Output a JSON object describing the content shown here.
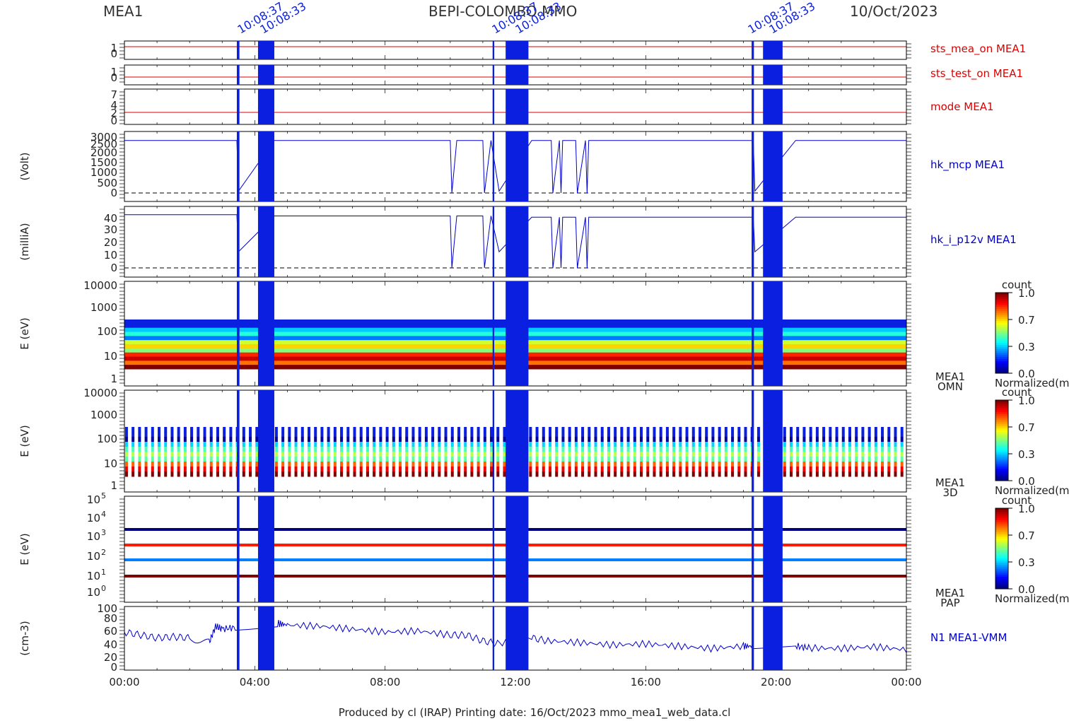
{
  "header": {
    "instrument": "MEA1",
    "mission": "BEPI-COLOMBO MMO",
    "date": "10/Oct/2023"
  },
  "footer": {
    "text": "Produced by cl (IRAP)   Printing date: 16/Oct/2023   mmo_mea1_web_data.cl"
  },
  "colors": {
    "red": "#dd0000",
    "blue": "#0000cc",
    "axis": "#000000"
  },
  "x_axis": {
    "ticks": [
      "00:00",
      "04:00",
      "08:00",
      "12:00",
      "16:00",
      "20:00",
      "00:00"
    ],
    "range_hours": [
      0,
      24
    ]
  },
  "colorbars": [
    {
      "title": "count",
      "ticks": [
        "1.0",
        "0.7",
        "0.3",
        "0.0"
      ],
      "label": "Normalized(m"
    },
    {
      "title": "count",
      "ticks": [
        "1.0",
        "0.7",
        "0.3",
        "0.0"
      ],
      "label": "Normalized(m"
    },
    {
      "title": "count",
      "ticks": [
        "1.0",
        "0.7",
        "0.3",
        "0.0"
      ],
      "label": "Normalized(m"
    }
  ],
  "chart_data": [
    {
      "type": "line",
      "name": "sts_mea_on MEA1",
      "ylabel": "",
      "yticks": [
        "1",
        "0"
      ],
      "ylim": [
        0,
        1
      ],
      "series": [
        {
          "name": "sts_mea_on MEA1",
          "values": [
            [
              0,
              1
            ],
            [
              24,
              1
            ]
          ]
        }
      ]
    },
    {
      "type": "line",
      "name": "sts_test_on MEA1",
      "ylabel": "",
      "yticks": [
        "1",
        "0"
      ],
      "ylim": [
        0,
        1
      ],
      "series": [
        {
          "name": "sts_test_on MEA1",
          "values": [
            [
              0,
              0
            ],
            [
              24,
              0
            ]
          ]
        }
      ]
    },
    {
      "type": "line",
      "name": "mode MEA1",
      "ylabel": "",
      "yticks": [
        "7",
        "4",
        "2",
        "0"
      ],
      "ylim": [
        0,
        7
      ],
      "series": [
        {
          "name": "mode MEA1",
          "values": [
            [
              0,
              2
            ],
            [
              24,
              2
            ]
          ]
        }
      ]
    },
    {
      "type": "line",
      "name": "hk_mcp MEA1",
      "ylabel": "(Volt)",
      "yticks": [
        "3000",
        "2500",
        "2000",
        "1500",
        "1000",
        "500",
        "0"
      ],
      "ylim": [
        0,
        3000
      ],
      "series": [
        {
          "name": "hk_mcp MEA1",
          "values": [
            [
              0,
              2820
            ],
            [
              3.45,
              2820
            ],
            [
              3.5,
              100
            ],
            [
              4.6,
              2820
            ],
            [
              10.0,
              2820
            ],
            [
              10.05,
              0
            ],
            [
              10.2,
              2820
            ],
            [
              11.0,
              2820
            ],
            [
              11.05,
              0
            ],
            [
              11.25,
              2820
            ],
            [
              11.5,
              100
            ],
            [
              12.5,
              2820
            ],
            [
              13.1,
              2820
            ],
            [
              13.15,
              0
            ],
            [
              13.35,
              2820
            ],
            [
              13.4,
              0
            ],
            [
              13.45,
              2820
            ],
            [
              13.85,
              2820
            ],
            [
              13.9,
              0
            ],
            [
              14.15,
              2820
            ],
            [
              14.2,
              0
            ],
            [
              14.25,
              2820
            ],
            [
              19.3,
              2820
            ],
            [
              19.35,
              100
            ],
            [
              20.6,
              2820
            ],
            [
              24,
              2820
            ]
          ]
        }
      ]
    },
    {
      "type": "line",
      "name": "hk_i_p12v MEA1",
      "ylabel": "(milliA)",
      "yticks": [
        "40",
        "30",
        "20",
        "10",
        "0"
      ],
      "ylim": [
        0,
        50
      ],
      "series": [
        {
          "name": "hk_i_p12v MEA1",
          "values": [
            [
              0,
              43
            ],
            [
              3.45,
              43
            ],
            [
              3.5,
              13
            ],
            [
              4.6,
              42
            ],
            [
              10.0,
              42
            ],
            [
              10.05,
              0
            ],
            [
              10.2,
              42
            ],
            [
              11.0,
              42
            ],
            [
              11.05,
              0
            ],
            [
              11.25,
              42
            ],
            [
              11.5,
              13
            ],
            [
              12.5,
              41
            ],
            [
              13.1,
              41
            ],
            [
              13.15,
              0
            ],
            [
              13.35,
              41
            ],
            [
              13.4,
              0
            ],
            [
              13.45,
              41
            ],
            [
              13.85,
              41
            ],
            [
              13.9,
              0
            ],
            [
              14.15,
              41
            ],
            [
              14.2,
              0
            ],
            [
              14.25,
              41
            ],
            [
              19.3,
              41
            ],
            [
              19.35,
              13
            ],
            [
              20.6,
              41
            ],
            [
              24,
              41
            ]
          ]
        }
      ]
    },
    {
      "type": "heatmap",
      "name": "MEA1 OMN",
      "label_lines": [
        "MEA1",
        "OMN"
      ],
      "ylabel": "E (eV)",
      "yticks": [
        "10000",
        "1000",
        "100",
        "10",
        "1"
      ],
      "ylim": [
        1,
        10000
      ],
      "log": true
    },
    {
      "type": "heatmap",
      "name": "MEA1 3D",
      "label_lines": [
        "MEA1",
        "3D"
      ],
      "ylabel": "E (eV)",
      "yticks": [
        "10000",
        "1000",
        "100",
        "10",
        "1"
      ],
      "ylim": [
        1,
        10000
      ],
      "log": true
    },
    {
      "type": "heatmap",
      "name": "MEA1 PAP",
      "label_lines": [
        "MEA1",
        "PAP"
      ],
      "ylabel": "E (eV)",
      "yticks": [
        "10^5",
        "10^4",
        "10^3",
        "10^2",
        "10^1",
        "10^0"
      ],
      "ylim": [
        1,
        100000
      ],
      "log": true
    },
    {
      "type": "line",
      "name": "N1 MEA1-VMM",
      "ylabel": "(cm-3)",
      "yticks": [
        "100",
        "80",
        "60",
        "40",
        "20",
        "0"
      ],
      "ylim": [
        0,
        100
      ],
      "series": [
        {
          "name": "N1 MEA1-VMM",
          "values": [
            [
              0,
              60
            ],
            [
              0.5,
              55
            ],
            [
              1,
              50
            ],
            [
              1.5,
              52
            ],
            [
              2,
              50
            ],
            [
              2.6,
              42
            ],
            [
              2.8,
              70
            ],
            [
              3,
              65
            ],
            [
              3.4,
              68
            ],
            [
              4.7,
              75
            ],
            [
              5,
              72
            ],
            [
              6,
              70
            ],
            [
              7,
              65
            ],
            [
              8,
              60
            ],
            [
              9,
              62
            ],
            [
              10,
              55
            ],
            [
              10.5,
              55
            ],
            [
              11,
              45
            ],
            [
              11.5,
              40
            ],
            [
              12.5,
              50
            ],
            [
              13,
              45
            ],
            [
              14,
              42
            ],
            [
              15,
              38
            ],
            [
              16,
              40
            ],
            [
              17,
              36
            ],
            [
              18,
              32
            ],
            [
              19,
              36
            ],
            [
              19.3,
              36
            ],
            [
              20.6,
              36
            ],
            [
              21,
              33
            ],
            [
              22,
              32
            ],
            [
              23,
              35
            ],
            [
              24,
              30
            ]
          ]
        }
      ]
    }
  ],
  "data_gaps_hours": [
    [
      3.45,
      3.53
    ],
    [
      4.1,
      4.6
    ],
    [
      11.3,
      11.35
    ],
    [
      11.7,
      12.4
    ],
    [
      19.25,
      19.32
    ],
    [
      19.6,
      20.2
    ]
  ],
  "gap_labels": [
    "10:08:37",
    "10:08:33",
    "10:08:37",
    "10:08:33",
    "10:08:37",
    "10:08:33"
  ]
}
